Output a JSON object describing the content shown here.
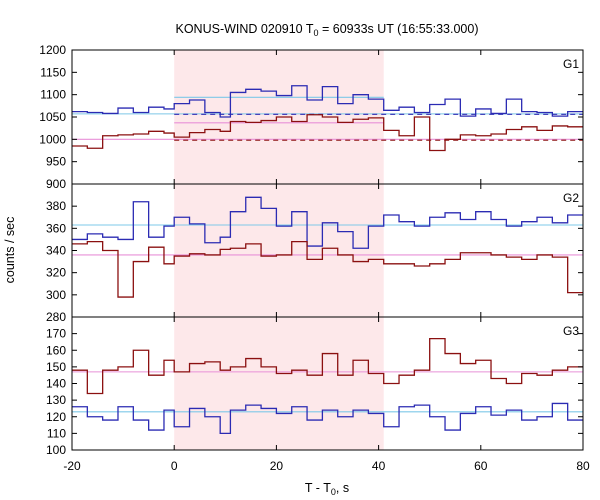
{
  "chart_data": {
    "type": "line",
    "title": "KONUS-WIND 020910 T0 = 60933s UT (16:55:33.000)",
    "title_parts": {
      "prefix": "KONUS-WIND 020910 T",
      "sub": "0",
      "suffix": " = 60933s UT (16:55:33.000)"
    },
    "xlabel": {
      "prefix": "T - T",
      "sub": "0",
      "suffix": ", s"
    },
    "ylabel": "counts / sec",
    "xlim": [
      -20,
      80
    ],
    "xticks": [
      -20,
      0,
      20,
      40,
      60,
      80
    ],
    "highlight_interval": [
      0,
      41
    ],
    "colors": {
      "blue": "#2b2bb3",
      "red": "#8b1010",
      "light_blue": "#7ec8e8",
      "pink": "#e890d8",
      "highlight": "#fde8ea"
    },
    "step_x": [
      -20,
      -17,
      -14,
      -11,
      -8,
      -5,
      -2,
      0,
      3,
      6,
      9,
      11,
      14,
      17,
      20,
      23,
      26,
      29,
      32,
      35,
      38,
      41,
      44,
      47,
      50,
      53,
      56,
      59,
      62,
      65,
      68,
      71,
      74,
      77,
      80
    ],
    "panels": [
      {
        "name": "G1",
        "ylim": [
          900,
          1200
        ],
        "yticks": [
          900,
          950,
          1000,
          1050,
          1100,
          1150,
          1200
        ],
        "series": [
          {
            "color": "blue",
            "values": [
              1062,
              1060,
              1058,
              1070,
              1060,
              1072,
              1068,
              1080,
              1088,
              1060,
              1050,
              1105,
              1112,
              1108,
              1098,
              1120,
              1088,
              1118,
              1080,
              1100,
              1090,
              1065,
              1072,
              1060,
              1078,
              1090,
              1052,
              1068,
              1058,
              1090,
              1062,
              1060,
              1052,
              1062,
              1062
            ]
          },
          {
            "color": "red",
            "values": [
              985,
              980,
              1008,
              1010,
              1012,
              1018,
              1014,
              1005,
              1015,
              1022,
              1018,
              1040,
              1038,
              1042,
              1050,
              1040,
              1055,
              1050,
              1038,
              1045,
              1048,
              1020,
              1008,
              1050,
              975,
              1000,
              1010,
              1008,
              1012,
              1022,
              1028,
              1020,
              1030,
              1028,
              1035
            ]
          }
        ],
        "reference_lines": [
          {
            "color": "light_blue",
            "style": "solid",
            "y": 1094,
            "x": [
              0,
              41
            ]
          },
          {
            "color": "light_blue",
            "style": "solid",
            "y": 1057,
            "x": [
              -20,
              80
            ]
          },
          {
            "color": "blue",
            "style": "dashed",
            "y": 1056,
            "x": [
              0,
              80
            ]
          },
          {
            "color": "pink",
            "style": "solid",
            "y": 1037,
            "x": [
              0,
              41
            ]
          },
          {
            "color": "pink",
            "style": "solid",
            "y": 1000,
            "x": [
              -20,
              80
            ]
          },
          {
            "color": "red",
            "style": "dashed",
            "y": 998,
            "x": [
              0,
              80
            ]
          }
        ]
      },
      {
        "name": "G2",
        "ylim": [
          280,
          400
        ],
        "yticks": [
          280,
          300,
          320,
          340,
          360,
          380
        ],
        "series": [
          {
            "color": "blue",
            "values": [
              350,
              355,
              352,
              350,
              384,
              352,
              362,
              370,
              364,
              347,
              352,
              375,
              388,
              378,
              362,
              375,
              344,
              365,
              357,
              342,
              362,
              372,
              366,
              362,
              370,
              374,
              368,
              375,
              368,
              362,
              366,
              370,
              365,
              372,
              368
            ]
          },
          {
            "color": "red",
            "values": [
              346,
              348,
              340,
              298,
              330,
              343,
              328,
              335,
              337,
              336,
              341,
              342,
              346,
              335,
              336,
              348,
              332,
              342,
              336,
              330,
              332,
              328,
              328,
              326,
              328,
              332,
              338,
              338,
              336,
              334,
              332,
              336,
              334,
              302,
              348
            ]
          }
        ],
        "reference_lines": [
          {
            "color": "light_blue",
            "style": "solid",
            "y": 363,
            "x": [
              -20,
              80
            ]
          },
          {
            "color": "pink",
            "style": "solid",
            "y": 336,
            "x": [
              -20,
              80
            ]
          }
        ]
      },
      {
        "name": "G3",
        "ylim": [
          100,
          180
        ],
        "yticks": [
          100,
          110,
          120,
          130,
          140,
          150,
          160,
          170
        ],
        "series": [
          {
            "color": "blue",
            "values": [
              126,
              120,
              118,
              126,
              118,
              112,
              124,
              114,
              125,
              120,
              110,
              124,
              127,
              125,
              122,
              126,
              118,
              124,
              120,
              124,
              122,
              114,
              126,
              127,
              120,
              112,
              122,
              126,
              121,
              124,
              118,
              120,
              128,
              118,
              117
            ]
          },
          {
            "color": "red",
            "values": [
              148,
              134,
              148,
              150,
              160,
              145,
              154,
              147,
              152,
              153,
              148,
              150,
              155,
              150,
              146,
              148,
              145,
              158,
              145,
              154,
              146,
              140,
              145,
              148,
              167,
              158,
              152,
              154,
              143,
              140,
              146,
              145,
              148,
              150,
              150
            ]
          }
        ],
        "reference_lines": [
          {
            "color": "pink",
            "style": "solid",
            "y": 147,
            "x": [
              -20,
              80
            ]
          },
          {
            "color": "light_blue",
            "style": "solid",
            "y": 123,
            "x": [
              -20,
              80
            ]
          }
        ]
      }
    ]
  }
}
